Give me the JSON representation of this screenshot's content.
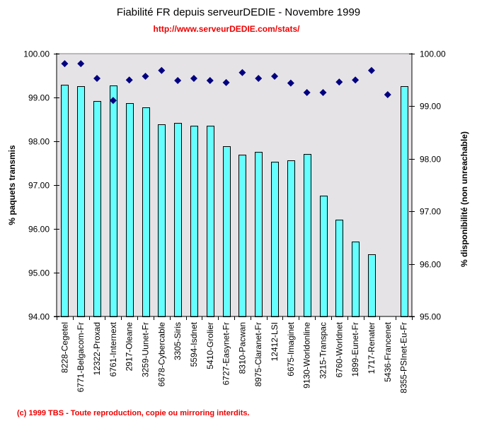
{
  "header": {
    "title": "Fiabilité FR depuis serveurDEDIE - Novembre 1999",
    "subtitle": "http://www.serveurDEDIE.com/stats/"
  },
  "footer": {
    "copyright": "(c) 1999 TBS - Toute reproduction, copie ou mirroring interdits."
  },
  "colors": {
    "plot_background": "#e6e3e6",
    "bar_fill": "#66ffff",
    "bar_stroke": "#000000",
    "marker": "#000080",
    "title": "#000000",
    "subtitle": "#ee0000",
    "footer": "#ee0000"
  },
  "chart_data": {
    "type": "bar",
    "title": "Fiabilité FR depuis serveurDEDIE - Novembre 1999",
    "subtitle": "http://www.serveurDEDIE.com/stats/",
    "xlabel": "",
    "ylabel": "% paquets transmis",
    "y2label": "% disponibilité (non unreachable)",
    "ylim": [
      94,
      100
    ],
    "y2lim": [
      95,
      100
    ],
    "yticks": [
      "94.00",
      "95.00",
      "96.00",
      "97.00",
      "98.00",
      "99.00",
      "100.00"
    ],
    "y2ticks": [
      "95.00",
      "96.00",
      "97.00",
      "98.00",
      "99.00",
      "100.00"
    ],
    "grid": false,
    "legend": "none",
    "categories": [
      "8228-Cegetel",
      "6771-Belgacom-Fr",
      "12322-Proxad",
      "6761-Internext",
      "2917-Oleane",
      "3259-Uunet-Fr",
      "6678-Cybercable",
      "3305-Siris",
      "5594-Isdnet",
      "5410-Grolier",
      "6727-Easynet-Fr",
      "8310-Pacwan",
      "8975-Claranet-Fr",
      "12412-LSI",
      "6675-Imaginet",
      "9130-Worldonline",
      "3215-Transpac",
      "6760-Worldnet",
      "1899-Eunet-Fr",
      "1717-Renater",
      "5436-Francenet",
      "8355-PSInet-Eu-Fr"
    ],
    "series": [
      {
        "name": "% paquets transmis",
        "type": "bar",
        "axis": "left",
        "values": [
          99.29,
          99.26,
          98.92,
          99.27,
          98.87,
          98.77,
          98.39,
          98.42,
          98.35,
          98.35,
          97.89,
          97.69,
          97.76,
          97.53,
          97.56,
          97.71,
          96.76,
          96.21,
          95.71,
          95.42,
          null,
          99.26
        ]
      },
      {
        "name": "% disponibilité (non unreachable)",
        "type": "scatter",
        "marker": "diamond",
        "axis": "right",
        "values": [
          99.81,
          99.81,
          99.53,
          99.11,
          99.5,
          99.57,
          99.68,
          99.49,
          99.53,
          99.49,
          99.45,
          99.64,
          99.53,
          99.57,
          99.44,
          99.26,
          99.26,
          99.46,
          99.5,
          99.68,
          99.22,
          null
        ]
      }
    ]
  }
}
